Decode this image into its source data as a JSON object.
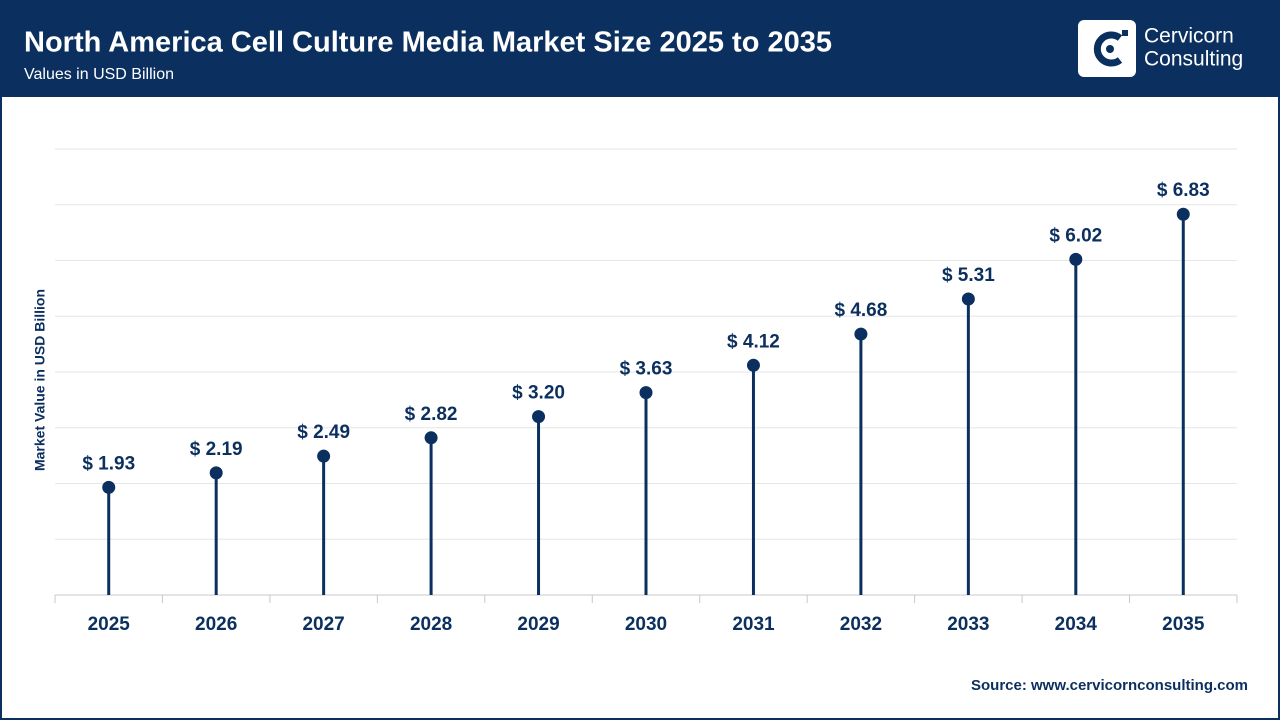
{
  "header": {
    "logo_line1": "Cervicorn",
    "logo_line2": "Consulting"
  },
  "chart_data": {
    "type": "lollipop",
    "title": "North America Cell Culture Media Market Size 2025 to 2035",
    "subtitle": "Values in USD Billion",
    "y_label": "Market Value in USD Billion",
    "categories": [
      "2025",
      "2026",
      "2027",
      "2028",
      "2029",
      "2030",
      "2031",
      "2032",
      "2033",
      "2034",
      "2035"
    ],
    "values": [
      1.93,
      2.19,
      2.49,
      2.82,
      3.2,
      3.63,
      4.12,
      4.68,
      5.31,
      6.02,
      6.83
    ],
    "value_labels": [
      "$ 1.93",
      "$ 2.19",
      "$ 2.49",
      "$ 2.82",
      "$ 3.20",
      "$ 3.63",
      "$ 4.12",
      "$ 4.68",
      "$ 5.31",
      "$ 6.02",
      "$ 6.83"
    ],
    "color": "#0b2f5e",
    "ylim": [
      0,
      8
    ],
    "yticks": [
      0,
      1,
      2,
      3,
      4,
      5,
      6,
      7,
      8
    ],
    "grid": true,
    "show_ytick_labels": false,
    "source": "Source: www.cervicornconsulting.com"
  }
}
